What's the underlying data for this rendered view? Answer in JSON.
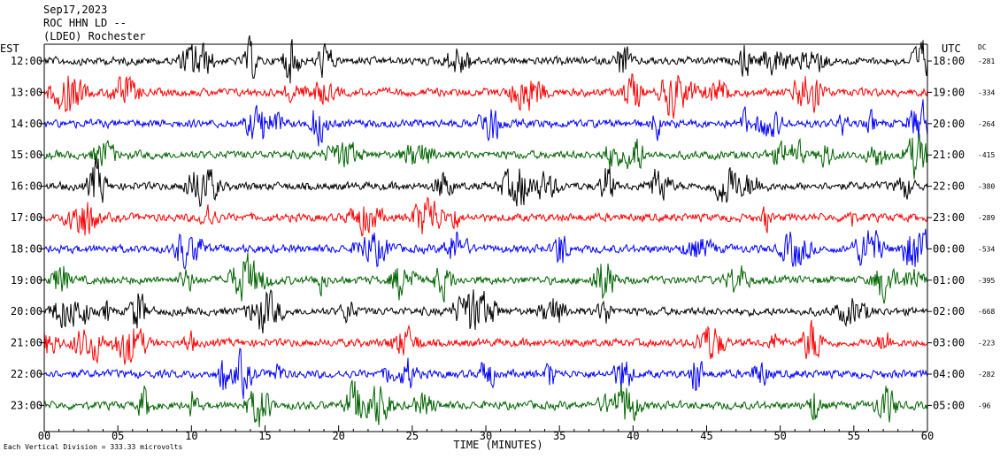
{
  "header": {
    "date": "Sep17,2023",
    "station": "ROC HHN LD --",
    "location": "(LDEO) Rochester"
  },
  "labels": {
    "left_tz": "EST",
    "right_tz": "UTC",
    "dc_header": "DC",
    "x_axis_title": "TIME (MINUTES)",
    "footnote": "Each Vertical Division = 333.33 microvolts"
  },
  "colors": {
    "black": "#000000",
    "red": "#ff0000",
    "blue": "#0000ff",
    "green": "#006400"
  },
  "chart_data": {
    "type": "line",
    "title": "",
    "xlabel": "TIME (MINUTES)",
    "ylabel": "",
    "xlim": [
      0,
      60
    ],
    "x_ticks": [
      "00",
      "05",
      "10",
      "15",
      "20",
      "25",
      "30",
      "35",
      "40",
      "45",
      "50",
      "55",
      "60"
    ],
    "trace_color_cycle": [
      "#000000",
      "#ff0000",
      "#0000ff",
      "#006400"
    ],
    "rows": [
      {
        "est": "12:00",
        "utc": "18:00",
        "dc": "-281"
      },
      {
        "est": "13:00",
        "utc": "19:00",
        "dc": "-334"
      },
      {
        "est": "14:00",
        "utc": "20:00",
        "dc": "-264"
      },
      {
        "est": "15:00",
        "utc": "21:00",
        "dc": "-415"
      },
      {
        "est": "16:00",
        "utc": "22:00",
        "dc": "-380"
      },
      {
        "est": "17:00",
        "utc": "23:00",
        "dc": "-289"
      },
      {
        "est": "18:00",
        "utc": "00:00",
        "dc": "-534"
      },
      {
        "est": "19:00",
        "utc": "01:00",
        "dc": "-395"
      },
      {
        "est": "20:00",
        "utc": "02:00",
        "dc": "-668"
      },
      {
        "est": "21:00",
        "utc": "03:00",
        "dc": "-223"
      },
      {
        "est": "22:00",
        "utc": "04:00",
        "dc": "-282"
      },
      {
        "est": "23:00",
        "utc": "05:00",
        "dc": "-96"
      }
    ]
  }
}
